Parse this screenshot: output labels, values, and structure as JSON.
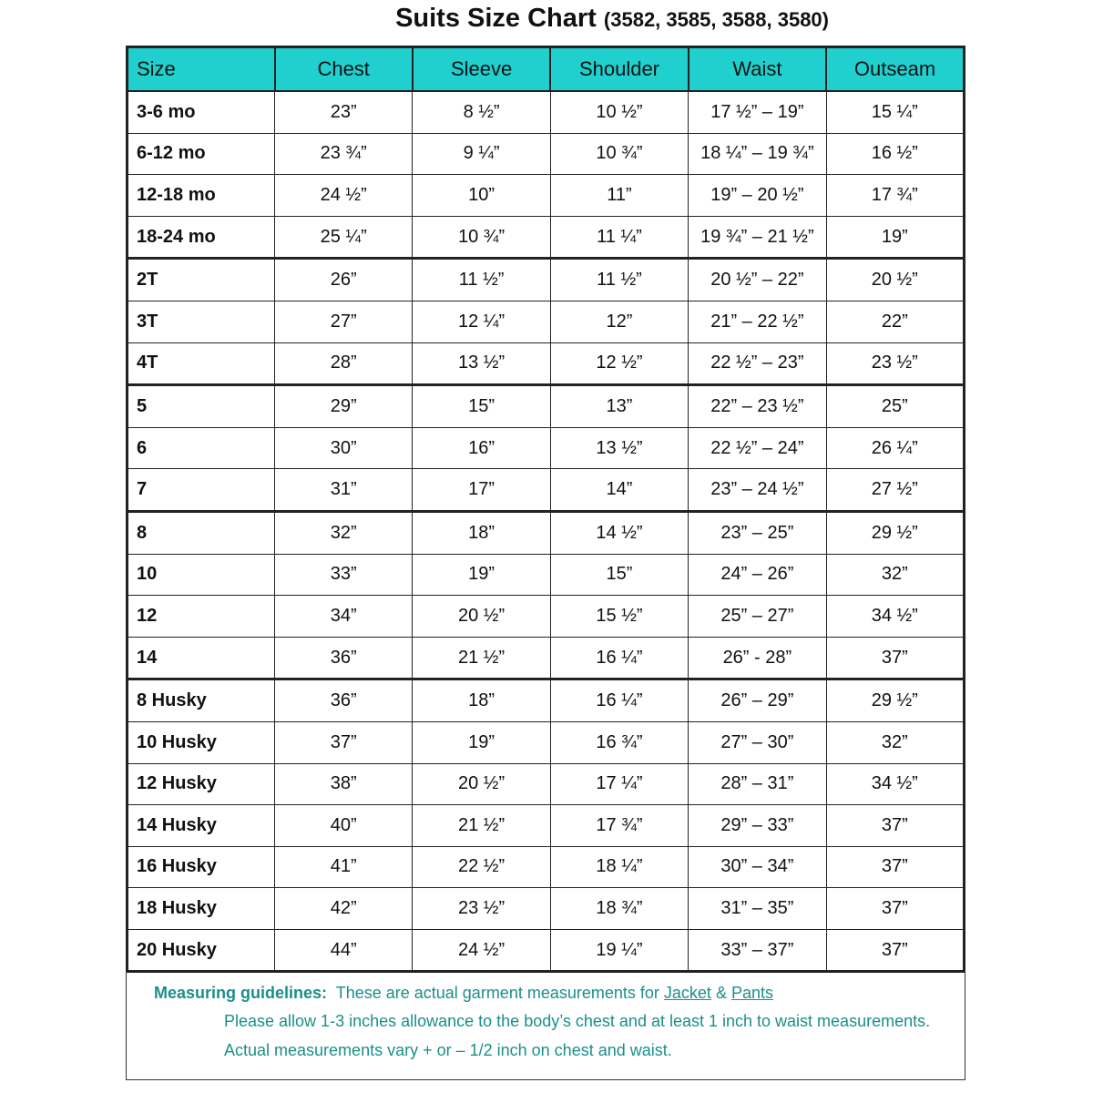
{
  "title": {
    "main": "Suits Size Chart",
    "sub": "(3582, 3585, 3588, 3580)"
  },
  "headers": [
    "Size",
    "Chest",
    "Sleeve",
    "Shoulder",
    "Waist",
    "Outseam"
  ],
  "rows": [
    [
      "3-6 mo",
      "23”",
      "8 ½”",
      "10 ½”",
      "17 ½” – 19”",
      "15 ¼”"
    ],
    [
      "6-12 mo",
      "23 ¾”",
      "9 ¼”",
      "10 ¾”",
      "18 ¼” – 19 ¾”",
      "16 ½”"
    ],
    [
      "12-18 mo",
      "24 ½”",
      "10”",
      "11”",
      "19” – 20 ½”",
      "17 ¾”"
    ],
    [
      "18-24 mo",
      "25 ¼”",
      "10 ¾”",
      "11 ¼”",
      "19 ¾” – 21 ½”",
      "19”"
    ],
    [
      "2T",
      "26”",
      "11 ½”",
      "11 ½”",
      "20 ½” – 22”",
      "20 ½”"
    ],
    [
      "3T",
      "27”",
      "12 ¼”",
      "12”",
      "21” – 22 ½”",
      "22”"
    ],
    [
      "4T",
      "28”",
      "13 ½”",
      "12 ½”",
      "22 ½” – 23”",
      "23 ½”"
    ],
    [
      "5",
      "29”",
      "15”",
      "13”",
      "22” – 23 ½”",
      "25”"
    ],
    [
      "6",
      "30”",
      "16”",
      "13 ½”",
      "22 ½” – 24”",
      "26 ¼”"
    ],
    [
      "7",
      "31”",
      "17”",
      "14”",
      "23” – 24 ½”",
      "27 ½”"
    ],
    [
      "8",
      "32”",
      "18”",
      "14 ½”",
      "23” – 25”",
      "29 ½”"
    ],
    [
      "10",
      "33”",
      "19”",
      "15”",
      "24” – 26”",
      "32”"
    ],
    [
      "12",
      "34”",
      "20 ½”",
      "15 ½”",
      "25” – 27”",
      "34 ½”"
    ],
    [
      "14",
      "36”",
      "21 ½”",
      "16 ¼”",
      "26” - 28”",
      "37”"
    ],
    [
      "8 Husky",
      "36”",
      "18”",
      "16 ¼”",
      "26” – 29”",
      "29 ½”"
    ],
    [
      "10 Husky",
      "37”",
      "19”",
      "16 ¾”",
      "27” – 30”",
      "32”"
    ],
    [
      "12 Husky",
      "38”",
      "20 ½”",
      "17 ¼”",
      "28” – 31”",
      "34 ½”"
    ],
    [
      "14 Husky",
      "40”",
      "21 ½”",
      "17 ¾”",
      "29” – 33”",
      "37”"
    ],
    [
      "16 Husky",
      "41”",
      "22 ½”",
      "18 ¼”",
      "30” – 34”",
      "37”"
    ],
    [
      "18 Husky",
      "42”",
      "23 ½”",
      "18 ¾”",
      "31” – 35”",
      "37”"
    ],
    [
      "20 Husky",
      "44”",
      "24 ½”",
      "19 ¼”",
      "33” – 37”",
      "37”"
    ]
  ],
  "footer": {
    "label": "Measuring guidelines:",
    "line1": "These are actual garment measurements for",
    "jacket": "Jacket",
    "amp": "&",
    "pants": "Pants",
    "line2": "Please allow 1-3 inches allowance to the body’s chest and at least 1 inch to waist measurements.",
    "line3": "Actual measurements vary + or – 1/2 inch on chest and waist."
  },
  "colors": {
    "header_bg": "#1fd0cf",
    "footer_text": "#1a8f8a"
  }
}
